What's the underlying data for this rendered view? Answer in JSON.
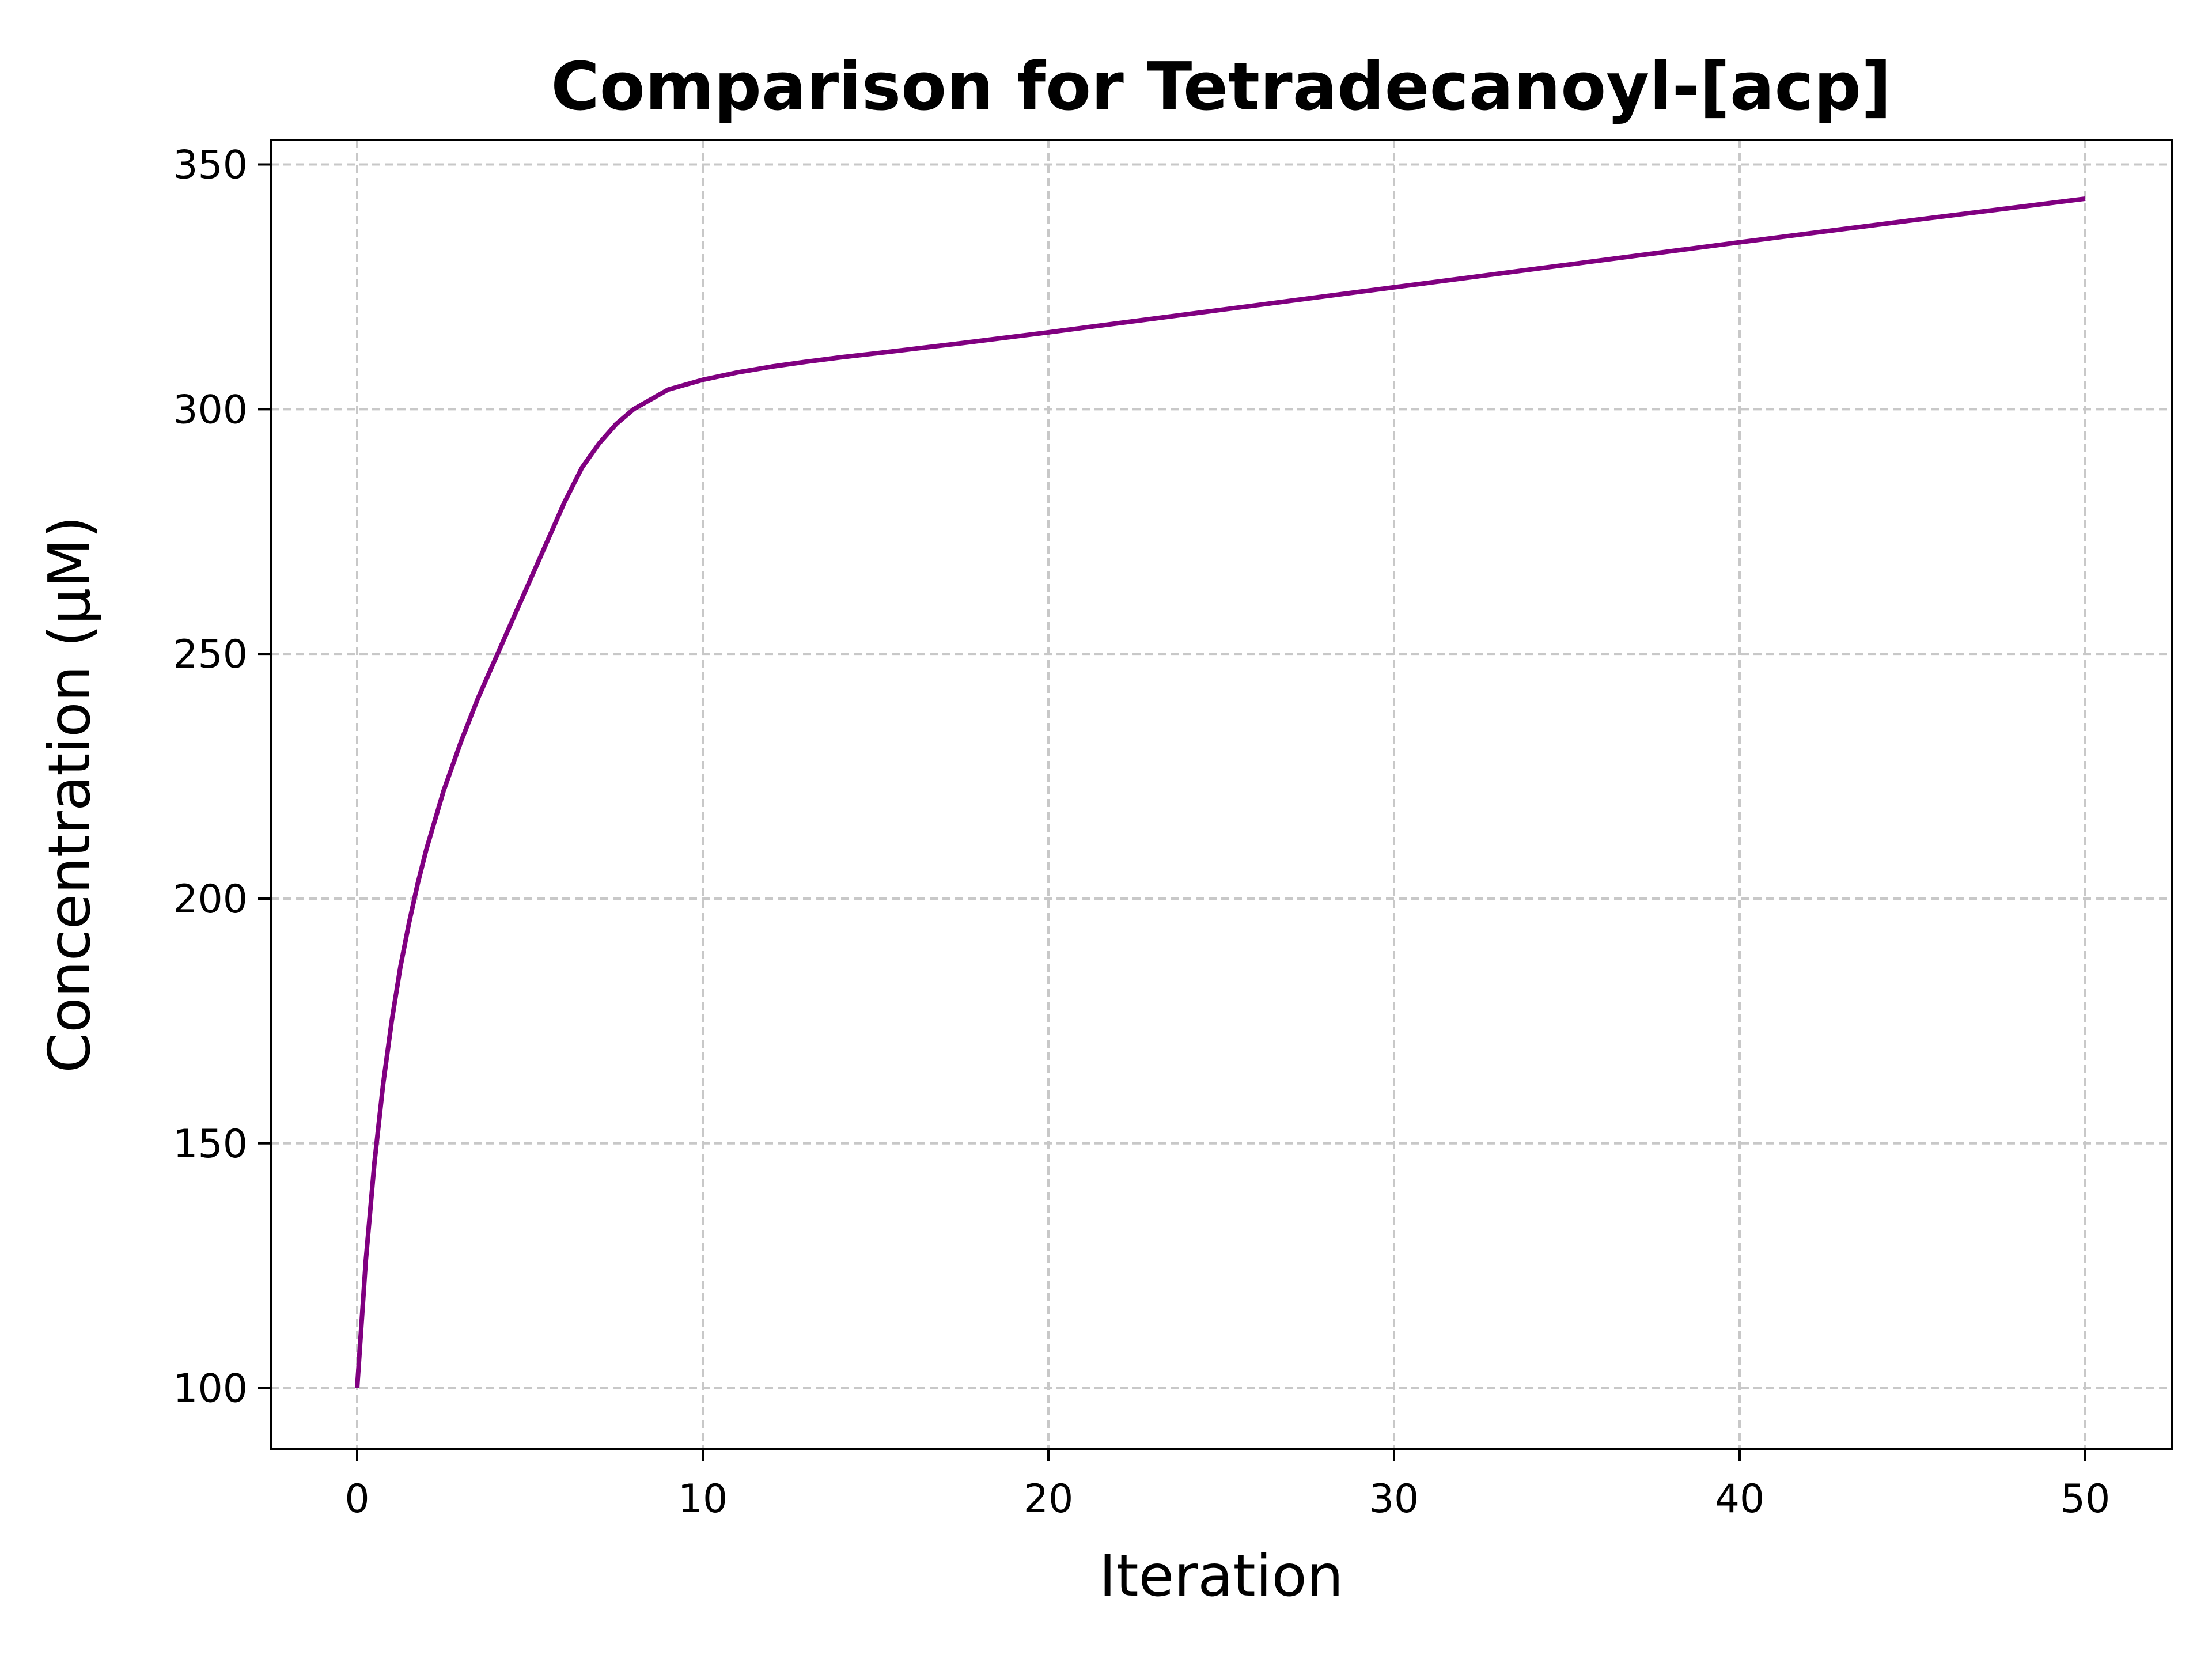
{
  "chart_data": {
    "type": "line",
    "title": "Comparison for Tetradecanoyl-[acp]",
    "xlabel": "Iteration",
    "ylabel": "Concentration (μM)",
    "xlim": [
      -2.5,
      52.5
    ],
    "ylim": [
      87.6,
      355.0
    ],
    "x_ticks": [
      0,
      10,
      20,
      30,
      40,
      50
    ],
    "y_ticks": [
      100,
      150,
      200,
      250,
      300,
      350
    ],
    "x_tick_labels": [
      "0",
      "10",
      "20",
      "30",
      "40",
      "50"
    ],
    "y_tick_labels": [
      "100",
      "150",
      "200",
      "250",
      "300",
      "350"
    ],
    "grid": true,
    "legend": "none",
    "series": [
      {
        "color": "#800080",
        "x": [
          0,
          0.25,
          0.5,
          0.75,
          1,
          1.25,
          1.5,
          1.75,
          2,
          2.5,
          3,
          3.5,
          4,
          4.5,
          5,
          5.5,
          6,
          6.5,
          7,
          7.5,
          8,
          8.5,
          9,
          9.5,
          10,
          11,
          12,
          13,
          14,
          15,
          17.5,
          20,
          25,
          30,
          35,
          40,
          45,
          50
        ],
        "y": [
          100,
          126,
          146,
          162,
          175,
          186,
          195,
          203,
          210,
          222,
          232,
          241,
          249,
          257,
          265,
          273,
          281,
          288,
          293,
          297,
          300,
          302,
          304,
          305,
          306,
          307.5,
          308.7,
          309.7,
          310.6,
          311.4,
          313.5,
          315.7,
          320.3,
          324.9,
          329.5,
          334.1,
          338.6,
          343.0
        ]
      }
    ]
  }
}
